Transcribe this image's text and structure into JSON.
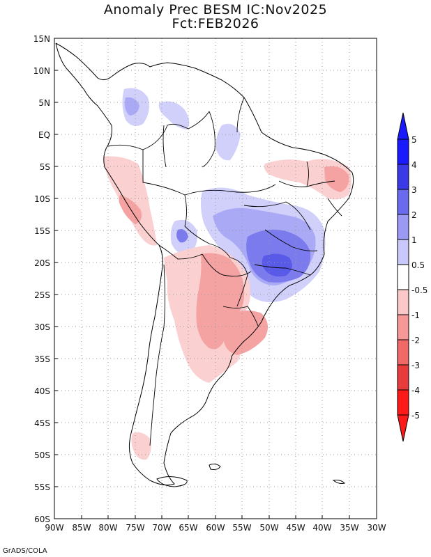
{
  "title": {
    "line1": "Anomaly Prec BESM IC:Nov2025",
    "line2": "Fct:FEB2026"
  },
  "credit": "GrADS/COLA",
  "map": {
    "lon_range": [
      -90,
      -30
    ],
    "lat_range": [
      -60,
      15
    ],
    "lon_labels": [
      "90W",
      "85W",
      "80W",
      "75W",
      "70W",
      "65W",
      "60W",
      "55W",
      "50W",
      "45W",
      "40W",
      "35W",
      "30W"
    ],
    "lat_labels": [
      "15N",
      "10N",
      "5N",
      "EQ",
      "5S",
      "10S",
      "15S",
      "20S",
      "25S",
      "30S",
      "35S",
      "40S",
      "45S",
      "50S",
      "55S",
      "60S"
    ]
  },
  "colorbar": {
    "colors": [
      "#1a1aff",
      "#3a3ae6",
      "#6a6aee",
      "#9a9af4",
      "#c8c8fa",
      "#ffffff",
      "#fbc8c8",
      "#f79898",
      "#f06868",
      "#e83c3c",
      "#ff1a1a"
    ],
    "labels": [
      "5",
      "4",
      "3",
      "2",
      "1",
      "0.5",
      "-0.5",
      "-1",
      "-2",
      "-3",
      "-4",
      "-5"
    ]
  },
  "legend_colors": {
    "pos_1": "#d6d6fb",
    "pos_2": "#a9a9f5",
    "pos_3": "#7b7bee",
    "neg_1": "#fbd0d0",
    "neg_2": "#f4a2a2",
    "neg_3": "#ee8080"
  }
}
